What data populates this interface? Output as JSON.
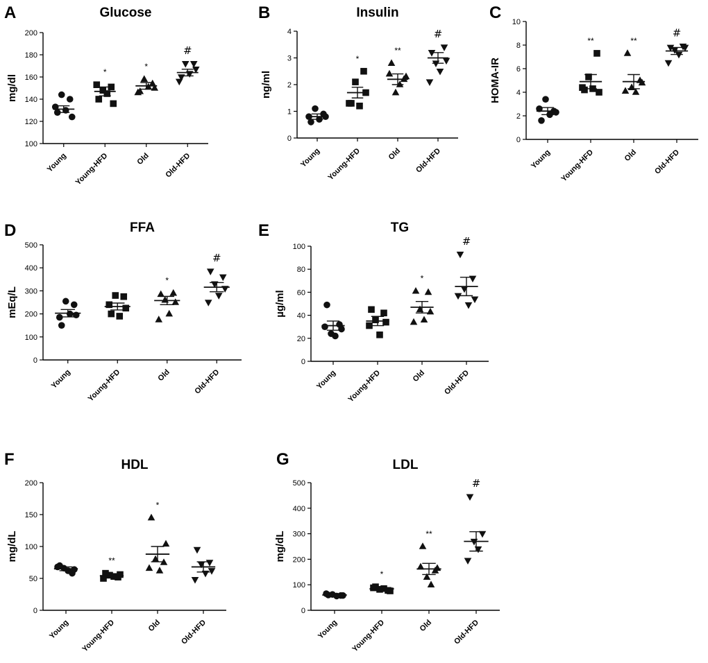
{
  "chart_data": [
    {
      "type": "scatter",
      "panel": "A",
      "title": "Glucose",
      "ylabel": "mg/dl",
      "ylim": [
        100,
        200
      ],
      "yticks": [
        100,
        120,
        140,
        160,
        180,
        200
      ],
      "categories": [
        "Young",
        "Young-HFD",
        "Old",
        "Old-HFD"
      ],
      "markers": [
        "circle",
        "square",
        "triangle-up",
        "triangle-down"
      ],
      "points": [
        [
          128,
          140,
          144,
          130,
          133,
          124
        ],
        [
          140,
          151,
          148,
          145,
          153,
          136
        ],
        [
          147,
          154,
          158,
          151,
          146,
          150
        ],
        [
          160,
          172,
          172,
          163,
          156,
          167
        ]
      ],
      "mean": [
        131,
        147,
        152,
        164
      ],
      "sem": [
        3,
        4,
        3,
        3
      ],
      "significance": [
        "",
        "*",
        "*",
        "#"
      ]
    },
    {
      "type": "scatter",
      "panel": "B",
      "title": "Insulin",
      "ylabel": "ng/ml",
      "ylim": [
        0,
        4
      ],
      "yticks": [
        0,
        1,
        2,
        3,
        4
      ],
      "categories": [
        "Young",
        "Young-HFD",
        "Old",
        "Old-HFD"
      ],
      "markers": [
        "circle",
        "square",
        "triangle-up",
        "triangle-down"
      ],
      "points": [
        [
          0.6,
          0.9,
          1.1,
          0.7,
          0.8,
          0.8
        ],
        [
          1.3,
          2.5,
          2.1,
          1.2,
          1.3,
          1.7
        ],
        [
          2.8,
          2.2,
          1.7,
          2.0,
          2.4,
          2.3
        ],
        [
          3.2,
          3.4,
          2.8,
          2.5,
          2.1,
          2.9
        ]
      ],
      "mean": [
        0.8,
        1.7,
        2.2,
        3.0
      ],
      "sem": [
        0.1,
        0.2,
        0.2,
        0.2
      ],
      "significance": [
        "",
        "*",
        "**",
        "#"
      ]
    },
    {
      "type": "scatter",
      "panel": "C",
      "title": "",
      "ylabel": "HOMA-IR",
      "ylim": [
        0,
        10
      ],
      "yticks": [
        0,
        2,
        4,
        6,
        8,
        10
      ],
      "categories": [
        "Young",
        "Young-HFD",
        "Old",
        "Old-HFD"
      ],
      "markers": [
        "circle",
        "square",
        "triangle-up",
        "triangle-down"
      ],
      "points": [
        [
          1.6,
          2.4,
          3.4,
          2.1,
          2.6,
          2.3
        ],
        [
          4.2,
          7.3,
          5.3,
          4.3,
          4.4,
          4.0
        ],
        [
          7.3,
          5.0,
          4.4,
          4.0,
          4.1,
          4.8
        ],
        [
          7.8,
          7.9,
          7.6,
          7.2,
          6.5,
          7.8
        ]
      ],
      "mean": [
        2.4,
        4.9,
        4.9,
        7.5
      ],
      "sem": [
        0.3,
        0.6,
        0.6,
        0.3
      ],
      "significance": [
        "",
        "**",
        "**",
        "#"
      ]
    },
    {
      "type": "scatter",
      "panel": "D",
      "title": "FFA",
      "ylabel": "mEq/L",
      "ylim": [
        0,
        500
      ],
      "yticks": [
        0,
        100,
        200,
        300,
        400,
        500
      ],
      "categories": [
        "Young",
        "Young-HFD",
        "Old",
        "Old-HFD"
      ],
      "markers": [
        "circle",
        "square",
        "triangle-up",
        "triangle-down"
      ],
      "points": [
        [
          150,
          240,
          255,
          200,
          185,
          195
        ],
        [
          200,
          275,
          280,
          190,
          240,
          225
        ],
        [
          285,
          290,
          260,
          200,
          175,
          250
        ],
        [
          385,
          360,
          330,
          280,
          250,
          310
        ]
      ],
      "mean": [
        203,
        232,
        258,
        316
      ],
      "sem": [
        16,
        15,
        18,
        20
      ],
      "significance": [
        "",
        "",
        "*",
        "#"
      ]
    },
    {
      "type": "scatter",
      "panel": "E",
      "title": "TG",
      "ylabel": "µg/ml",
      "ylim": [
        0,
        100
      ],
      "yticks": [
        0,
        20,
        40,
        60,
        80,
        100
      ],
      "categories": [
        "Young",
        "Young-HFD",
        "Old",
        "Old-HFD"
      ],
      "markers": [
        "circle",
        "square",
        "triangle-up",
        "triangle-down"
      ],
      "points": [
        [
          49,
          32,
          24,
          22,
          30,
          28
        ],
        [
          45,
          42,
          36,
          23,
          31,
          34
        ],
        [
          61,
          60,
          45,
          36,
          34,
          43
        ],
        [
          93,
          72,
          63,
          49,
          57,
          54
        ]
      ],
      "mean": [
        31,
        35,
        47,
        65
      ],
      "sem": [
        4,
        4,
        5,
        8
      ],
      "significance": [
        "",
        "",
        "*",
        "#"
      ]
    },
    {
      "type": "scatter",
      "panel": "F",
      "title": "HDL",
      "ylabel": "mg/dL",
      "ylim": [
        0,
        200
      ],
      "yticks": [
        0,
        50,
        100,
        150,
        200
      ],
      "categories": [
        "Young",
        "Young-HFD",
        "Old",
        "Old-HFD"
      ],
      "markers": [
        "circle",
        "square",
        "triangle-up",
        "triangle-down"
      ],
      "points": [
        [
          70,
          58,
          66,
          62,
          68,
          64
        ],
        [
          58,
          52,
          55,
          53,
          50,
          56
        ],
        [
          145,
          75,
          80,
          62,
          66,
          104
        ],
        [
          95,
          75,
          72,
          58,
          48,
          62
        ]
      ],
      "mean": [
        65,
        54,
        88,
        68
      ],
      "sem": [
        3,
        2,
        12,
        8
      ],
      "significance": [
        "",
        "**",
        "*",
        ""
      ]
    },
    {
      "type": "scatter",
      "panel": "G",
      "title": "LDL",
      "ylabel": "mg/dL",
      "ylim": [
        0,
        500
      ],
      "yticks": [
        0,
        100,
        200,
        300,
        400,
        500
      ],
      "categories": [
        "Young",
        "Young-HFD",
        "Old",
        "Old-HFD"
      ],
      "markers": [
        "circle",
        "square",
        "triangle-up",
        "triangle-down"
      ],
      "points": [
        [
          60,
          58,
          62,
          56,
          65,
          58
        ],
        [
          92,
          78,
          82,
          85,
          88,
          76
        ],
        [
          250,
          155,
          130,
          100,
          170,
          165
        ],
        [
          445,
          300,
          270,
          240,
          195
        ]
      ],
      "mean": [
        60,
        84,
        162,
        270
      ],
      "sem": [
        2,
        3,
        22,
        38
      ],
      "significance": [
        "",
        "*",
        "**",
        "#"
      ]
    }
  ]
}
